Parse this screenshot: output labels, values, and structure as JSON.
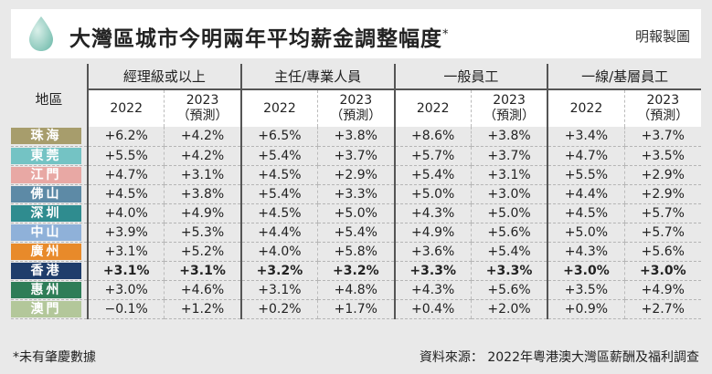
{
  "header": {
    "title": "大灣區城市今明兩年平均薪金調整幅度",
    "title_mark": "*",
    "credit": "明報製圖"
  },
  "chart_data": {
    "type": "table",
    "region_header": "地區",
    "groups": [
      "經理級或以上",
      "主任/專業人員",
      "一般員工",
      "一線/基層員工"
    ],
    "subheaders": [
      {
        "year": "2022",
        "note": ""
      },
      {
        "year": "2023",
        "note": "（預測）"
      }
    ],
    "rows": [
      {
        "region": "珠海",
        "color": "#a79d6c",
        "values": [
          "+6.2%",
          "+4.2%",
          "+6.5%",
          "+3.8%",
          "+8.6%",
          "+3.8%",
          "+3.4%",
          "+3.7%"
        ]
      },
      {
        "region": "東莞",
        "color": "#74c3c4",
        "values": [
          "+5.5%",
          "+4.2%",
          "+5.4%",
          "+3.7%",
          "+5.7%",
          "+3.7%",
          "+4.7%",
          "+3.5%"
        ]
      },
      {
        "region": "江門",
        "color": "#e8a8a4",
        "values": [
          "+4.7%",
          "+3.1%",
          "+4.5%",
          "+2.9%",
          "+5.4%",
          "+3.1%",
          "+5.5%",
          "+2.9%"
        ]
      },
      {
        "region": "佛山",
        "color": "#5d8aa6",
        "values": [
          "+4.5%",
          "+3.8%",
          "+5.4%",
          "+3.3%",
          "+5.0%",
          "+3.0%",
          "+4.4%",
          "+2.9%"
        ]
      },
      {
        "region": "深圳",
        "color": "#2f8c8f",
        "values": [
          "+4.0%",
          "+4.9%",
          "+4.5%",
          "+5.0%",
          "+4.3%",
          "+5.0%",
          "+4.5%",
          "+5.7%"
        ]
      },
      {
        "region": "中山",
        "color": "#8fb1d9",
        "values": [
          "+3.9%",
          "+5.3%",
          "+4.4%",
          "+5.4%",
          "+4.9%",
          "+5.6%",
          "+5.0%",
          "+5.7%"
        ]
      },
      {
        "region": "廣州",
        "color": "#e88a2a",
        "values": [
          "+3.1%",
          "+5.2%",
          "+4.0%",
          "+5.8%",
          "+3.6%",
          "+5.4%",
          "+4.3%",
          "+5.6%"
        ]
      },
      {
        "region": "香港",
        "color": "#1f3d6b",
        "bold": true,
        "values": [
          "+3.1%",
          "+3.1%",
          "+3.2%",
          "+3.2%",
          "+3.3%",
          "+3.3%",
          "+3.0%",
          "+3.0%"
        ]
      },
      {
        "region": "惠州",
        "color": "#2e7d57",
        "values": [
          "+3.0%",
          "+4.6%",
          "+3.1%",
          "+4.8%",
          "+4.3%",
          "+5.6%",
          "+3.5%",
          "+4.9%"
        ]
      },
      {
        "region": "澳門",
        "color": "#b3c79a",
        "values": [
          "−0.1%",
          "+1.2%",
          "+0.2%",
          "+1.7%",
          "+0.4%",
          "+2.0%",
          "+0.9%",
          "+2.7%"
        ]
      }
    ]
  },
  "footer": {
    "note": "*未有肇慶數據",
    "source": "資料來源： 2022年粵港澳大灣區薪酬及福利調查"
  }
}
